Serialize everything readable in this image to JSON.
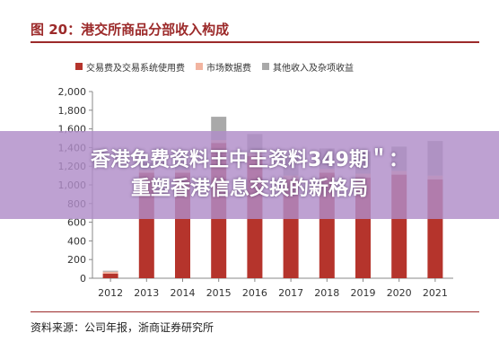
{
  "figure": {
    "title": "图 20：港交所商品分部收入构成",
    "source": "资料来源：公司年报，浙商证券研究所"
  },
  "banner": {
    "line1": "香港免费资料王中王资料349期＂：",
    "line2": "重塑香港信息交换的新格局"
  },
  "colors": {
    "series_trading": "#b5342c",
    "series_market_data": "#f2b4a0",
    "series_other": "#a9a9a9",
    "accent": "#9c2a2a"
  },
  "chart_data": {
    "type": "bar",
    "stacked": true,
    "categories": [
      "2012",
      "2013",
      "2014",
      "2015",
      "2016",
      "2017",
      "2018",
      "2019",
      "2020",
      "2021"
    ],
    "series": [
      {
        "name": "交易费及交易系统使用费",
        "values": [
          50,
          1130,
          1130,
          1450,
          1310,
          1060,
          1130,
          1080,
          1110,
          1060
        ]
      },
      {
        "name": "市场数据费",
        "values": [
          20,
          30,
          30,
          30,
          35,
          40,
          40,
          40,
          40,
          40
        ]
      },
      {
        "name": "其他收入及杂项收益",
        "values": [
          10,
          80,
          60,
          250,
          200,
          210,
          220,
          240,
          260,
          370
        ]
      }
    ],
    "yticks": [
      0,
      200,
      400,
      600,
      800,
      1000,
      1200,
      1400,
      1600,
      1800,
      2000
    ],
    "yticklabels": [
      "0",
      "200",
      "400",
      "600",
      "800",
      "1,000",
      "1,200",
      "1,400",
      "1,600",
      "1,800",
      "2,000"
    ],
    "ylim": [
      0,
      2000
    ],
    "legend": "top",
    "grid": false
  }
}
